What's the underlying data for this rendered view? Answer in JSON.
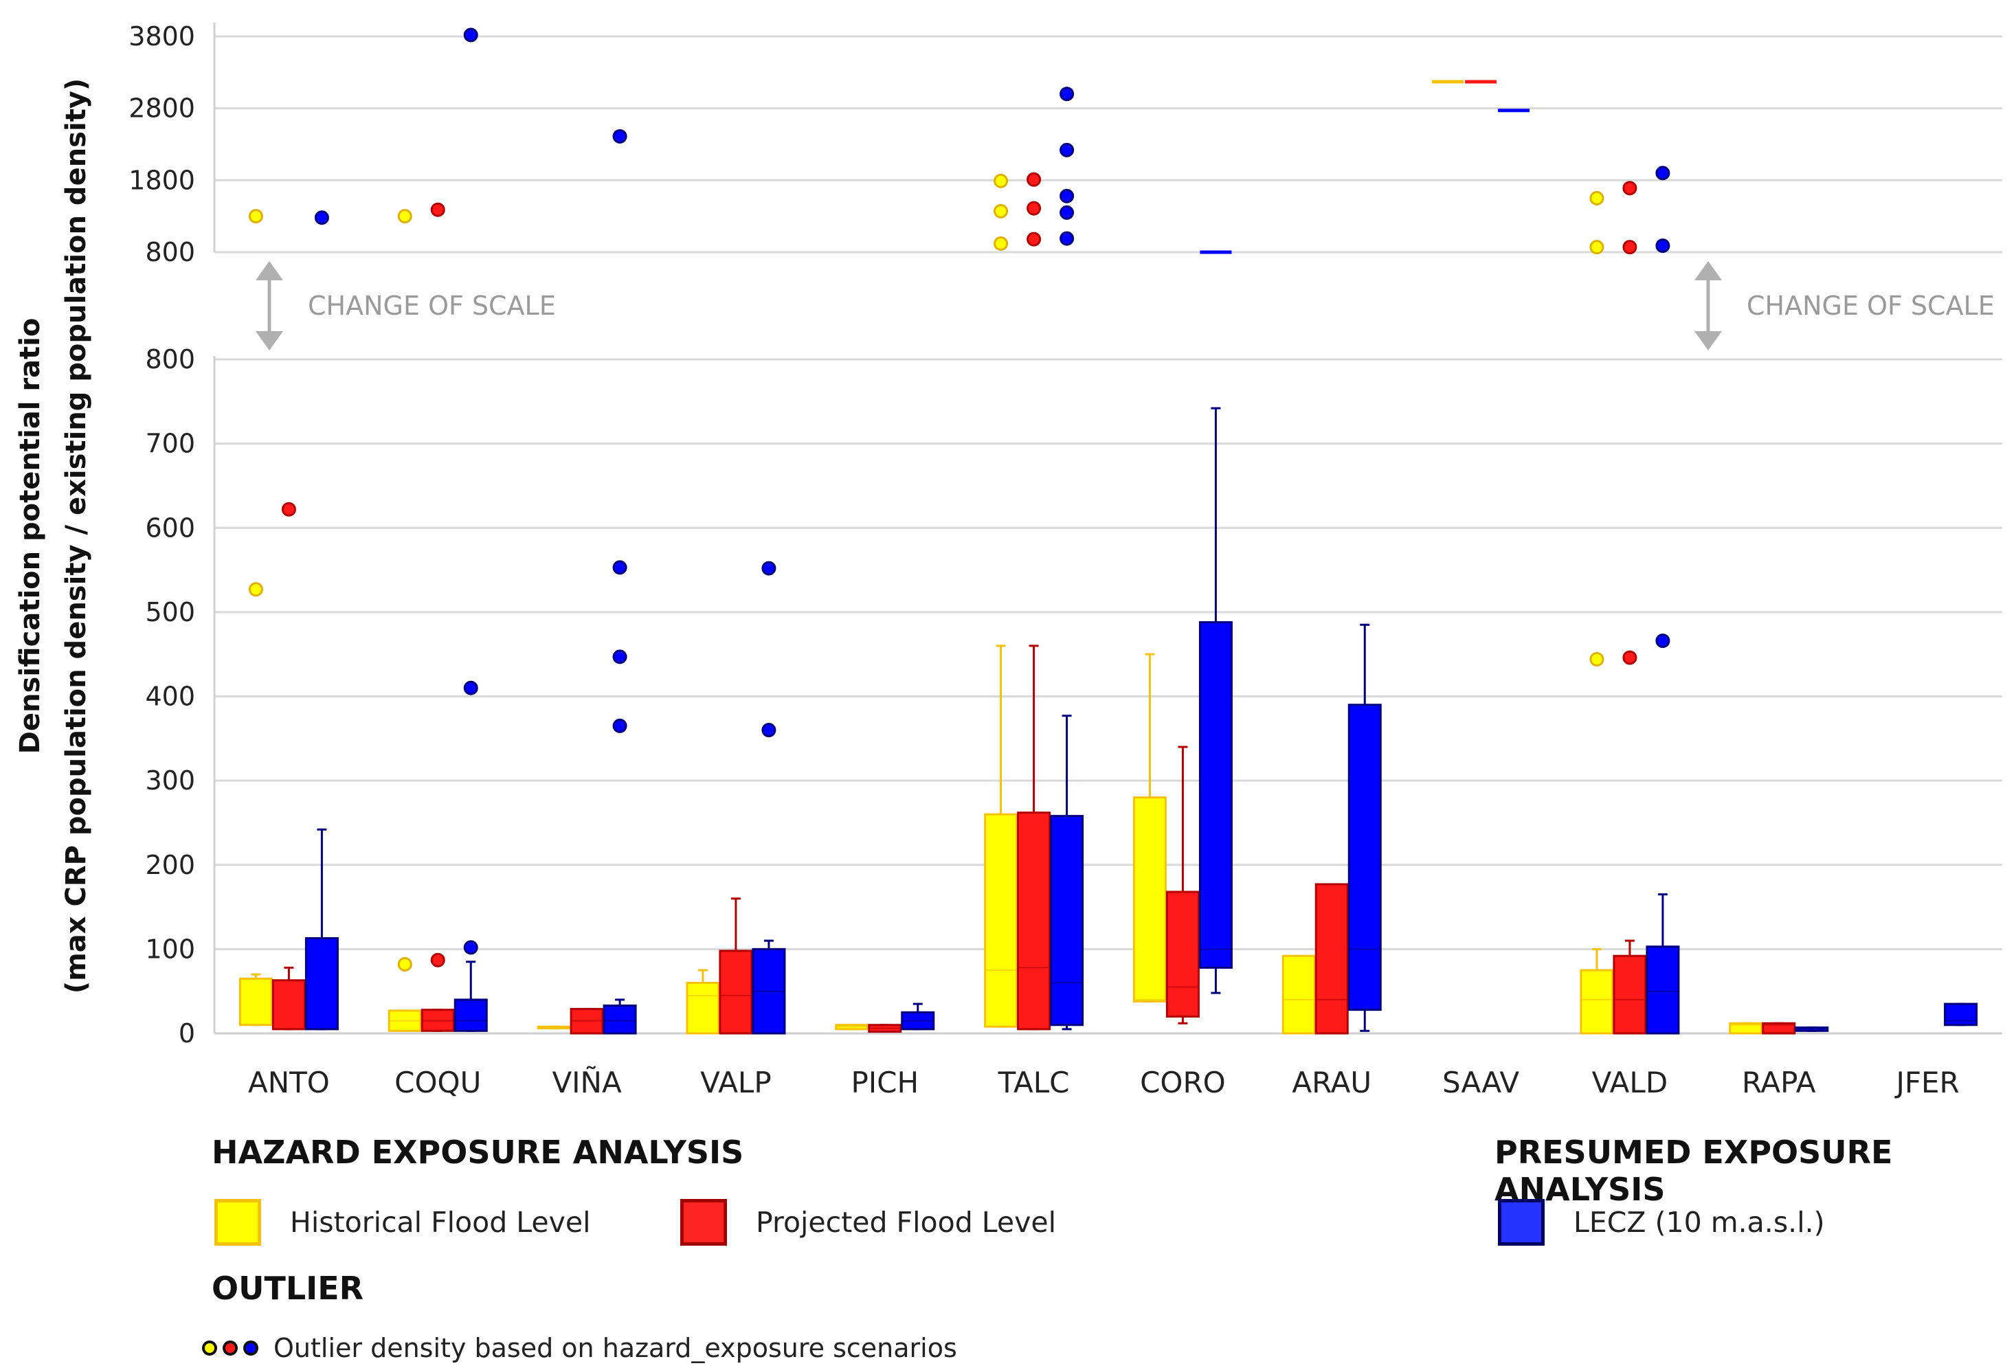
{
  "chart_data": {
    "type": "box",
    "ylabel_line1": "Densification potential ratio",
    "ylabel_line2": "(max CRP population density / existing population density)",
    "scale_break_note": "CHANGE OF SCALE",
    "lower_axis": {
      "ylim": [
        0,
        800
      ],
      "ticks": [
        "0",
        "100",
        "200",
        "300",
        "400",
        "500",
        "600",
        "700",
        "800"
      ]
    },
    "upper_axis": {
      "ylim": [
        800,
        3800
      ],
      "ticks": [
        "800",
        "1800",
        "2800",
        "3800"
      ]
    },
    "categories": [
      "ANTO",
      "COQU",
      "VIÑA",
      "VALP",
      "PICH",
      "TALC",
      "CORO",
      "ARAU",
      "SAAV",
      "VALD",
      "RAPA",
      "JFER"
    ],
    "grid": true,
    "series": [
      {
        "name": "Historical Flood Level",
        "color": "#ffff00",
        "edge": "#f4c20d",
        "boxes": [
          {
            "cat": "ANTO",
            "q1": 10,
            "median": 10,
            "q3": 65,
            "whisker_low": 10,
            "whisker_high": 70
          },
          {
            "cat": "COQU",
            "q1": 3,
            "median": 15,
            "q3": 27,
            "whisker_low": 3,
            "whisker_high": 27
          },
          {
            "cat": "VIÑA",
            "q1": 6,
            "median": 6,
            "q3": 8,
            "whisker_low": 6,
            "whisker_high": 8
          },
          {
            "cat": "VALP",
            "q1": 0,
            "median": 45,
            "q3": 60,
            "whisker_low": 0,
            "whisker_high": 75
          },
          {
            "cat": "PICH",
            "q1": 5,
            "median": 8,
            "q3": 10,
            "whisker_low": 5,
            "whisker_high": 10
          },
          {
            "cat": "TALC",
            "q1": 8,
            "median": 75,
            "q3": 260,
            "whisker_low": 8,
            "whisker_high": 460
          },
          {
            "cat": "CORO",
            "q1": 38,
            "median": 40,
            "q3": 280,
            "whisker_low": 38,
            "whisker_high": 450
          },
          {
            "cat": "ARAU",
            "q1": 0,
            "median": 40,
            "q3": 92,
            "whisker_low": 0,
            "whisker_high": 92
          },
          {
            "cat": "VALD",
            "q1": 0,
            "median": 40,
            "q3": 75,
            "whisker_low": 0,
            "whisker_high": 100
          },
          {
            "cat": "RAPA",
            "q1": 0,
            "median": 10,
            "q3": 12,
            "whisker_low": 0,
            "whisker_high": 12
          }
        ],
        "outliers": [
          {
            "cat": "ANTO",
            "value": 527
          },
          {
            "cat": "COQU",
            "value": 82
          },
          {
            "cat": "ANTO",
            "value": 1300,
            "scale": "upper"
          },
          {
            "cat": "COQU",
            "value": 1300,
            "scale": "upper"
          },
          {
            "cat": "TALC",
            "value": 1790,
            "scale": "upper"
          },
          {
            "cat": "TALC",
            "value": 1370,
            "scale": "upper"
          },
          {
            "cat": "TALC",
            "value": 920,
            "scale": "upper"
          },
          {
            "cat": "VALD",
            "value": 1550,
            "scale": "upper"
          },
          {
            "cat": "VALD",
            "value": 870,
            "scale": "upper"
          },
          {
            "cat": "VALD",
            "value": 444
          }
        ]
      },
      {
        "name": "Projected Flood Level",
        "color": "#ff1a1a",
        "edge": "#b40000",
        "boxes": [
          {
            "cat": "ANTO",
            "q1": 5,
            "median": 5,
            "q3": 63,
            "whisker_low": 5,
            "whisker_high": 78
          },
          {
            "cat": "COQU",
            "q1": 3,
            "median": 15,
            "q3": 28,
            "whisker_low": 3,
            "whisker_high": 28
          },
          {
            "cat": "VIÑA",
            "q1": 0,
            "median": 15,
            "q3": 29,
            "whisker_low": 0,
            "whisker_high": 29
          },
          {
            "cat": "VALP",
            "q1": 0,
            "median": 45,
            "q3": 98,
            "whisker_low": 0,
            "whisker_high": 160
          },
          {
            "cat": "PICH",
            "q1": 2,
            "median": 6,
            "q3": 10,
            "whisker_low": 2,
            "whisker_high": 10
          },
          {
            "cat": "TALC",
            "q1": 5,
            "median": 78,
            "q3": 262,
            "whisker_low": 5,
            "whisker_high": 460
          },
          {
            "cat": "CORO",
            "q1": 20,
            "median": 55,
            "q3": 168,
            "whisker_low": 12,
            "whisker_high": 340
          },
          {
            "cat": "ARAU",
            "q1": 0,
            "median": 40,
            "q3": 177,
            "whisker_low": 0,
            "whisker_high": 177
          },
          {
            "cat": "VALD",
            "q1": 0,
            "median": 40,
            "q3": 92,
            "whisker_low": 0,
            "whisker_high": 110
          },
          {
            "cat": "RAPA",
            "q1": 0,
            "median": 10,
            "q3": 12,
            "whisker_low": 0,
            "whisker_high": 12
          }
        ],
        "outliers": [
          {
            "cat": "ANTO",
            "value": 622
          },
          {
            "cat": "COQU",
            "value": 87
          },
          {
            "cat": "COQU",
            "value": 1390,
            "scale": "upper"
          },
          {
            "cat": "TALC",
            "value": 1810,
            "scale": "upper"
          },
          {
            "cat": "TALC",
            "value": 1410,
            "scale": "upper"
          },
          {
            "cat": "TALC",
            "value": 980,
            "scale": "upper"
          },
          {
            "cat": "VALD",
            "value": 1690,
            "scale": "upper"
          },
          {
            "cat": "VALD",
            "value": 870,
            "scale": "upper"
          },
          {
            "cat": "VALD",
            "value": 446
          }
        ]
      },
      {
        "name": "LECZ (10 m.a.s.l.)",
        "color": "#0000ff",
        "edge": "#000080",
        "boxes": [
          {
            "cat": "ANTO",
            "q1": 5,
            "median": 5,
            "q3": 113,
            "whisker_low": 5,
            "whisker_high": 242
          },
          {
            "cat": "COQU",
            "q1": 3,
            "median": 15,
            "q3": 40,
            "whisker_low": 3,
            "whisker_high": 85
          },
          {
            "cat": "VIÑA",
            "q1": 0,
            "median": 15,
            "q3": 33,
            "whisker_low": 0,
            "whisker_high": 40
          },
          {
            "cat": "VALP",
            "q1": 0,
            "median": 50,
            "q3": 100,
            "whisker_low": 0,
            "whisker_high": 110
          },
          {
            "cat": "PICH",
            "q1": 5,
            "median": 15,
            "q3": 25,
            "whisker_low": 5,
            "whisker_high": 35
          },
          {
            "cat": "TALC",
            "q1": 10,
            "median": 60,
            "q3": 258,
            "whisker_low": 5,
            "whisker_high": 377
          },
          {
            "cat": "CORO",
            "q1": 78,
            "median": 100,
            "q3": 488,
            "whisker_low": 48,
            "whisker_high": 742
          },
          {
            "cat": "ARAU",
            "q1": 28,
            "median": 100,
            "q3": 390,
            "whisker_low": 3,
            "whisker_high": 485
          },
          {
            "cat": "VALD",
            "q1": 0,
            "median": 50,
            "q3": 103,
            "whisker_low": 0,
            "whisker_high": 165
          },
          {
            "cat": "RAPA",
            "q1": 3,
            "median": 5,
            "q3": 7,
            "whisker_low": 3,
            "whisker_high": 7
          },
          {
            "cat": "JFER",
            "q1": 10,
            "median": 15,
            "q3": 35,
            "whisker_low": 10,
            "whisker_high": 35
          }
        ],
        "outliers": [
          {
            "cat": "ANTO",
            "value": 1280,
            "scale": "upper"
          },
          {
            "cat": "COQU",
            "value": 3820,
            "scale": "upper"
          },
          {
            "cat": "COQU",
            "value": 410
          },
          {
            "cat": "COQU",
            "value": 102
          },
          {
            "cat": "VIÑA",
            "value": 2410,
            "scale": "upper"
          },
          {
            "cat": "VIÑA",
            "value": 553
          },
          {
            "cat": "VIÑA",
            "value": 447
          },
          {
            "cat": "VIÑA",
            "value": 365
          },
          {
            "cat": "VALP",
            "value": 552
          },
          {
            "cat": "VALP",
            "value": 360
          },
          {
            "cat": "TALC",
            "value": 3000,
            "scale": "upper"
          },
          {
            "cat": "TALC",
            "value": 2220,
            "scale": "upper"
          },
          {
            "cat": "TALC",
            "value": 1580,
            "scale": "upper"
          },
          {
            "cat": "TALC",
            "value": 1350,
            "scale": "upper"
          },
          {
            "cat": "TALC",
            "value": 990,
            "scale": "upper"
          },
          {
            "cat": "VALD",
            "value": 1900,
            "scale": "upper"
          },
          {
            "cat": "VALD",
            "value": 890,
            "scale": "upper"
          },
          {
            "cat": "VALD",
            "value": 466
          }
        ]
      }
    ],
    "single_value_marks": [
      {
        "cat": "SAAV",
        "series": "Historical Flood Level",
        "value": 3170,
        "scale": "upper"
      },
      {
        "cat": "SAAV",
        "series": "Projected Flood Level",
        "value": 3170,
        "scale": "upper"
      },
      {
        "cat": "SAAV",
        "series": "LECZ (10 m.a.s.l.)",
        "value": 2770,
        "scale": "upper"
      },
      {
        "cat": "CORO",
        "series": "LECZ (10 m.a.s.l.)",
        "value": 800,
        "scale": "upper"
      }
    ]
  },
  "legend": {
    "hazard_heading": "HAZARD EXPOSURE ANALYSIS",
    "presumed_heading": "PRESUMED EXPOSURE ANALYSIS",
    "outlier_heading": "OUTLIER",
    "historical_label": "Historical Flood Level",
    "projected_label": "Projected Flood Level",
    "lecz_label": "LECZ (10 m.a.s.l.)",
    "outlier_label": "Outlier density based on hazard_exposure scenarios",
    "colors": {
      "yellow": "#ffff00",
      "red": "#ff1a1a",
      "blue": "#2233ff",
      "yellow_border": "#f4c20d",
      "red_border": "#a00000",
      "blue_border": "#000060"
    }
  }
}
